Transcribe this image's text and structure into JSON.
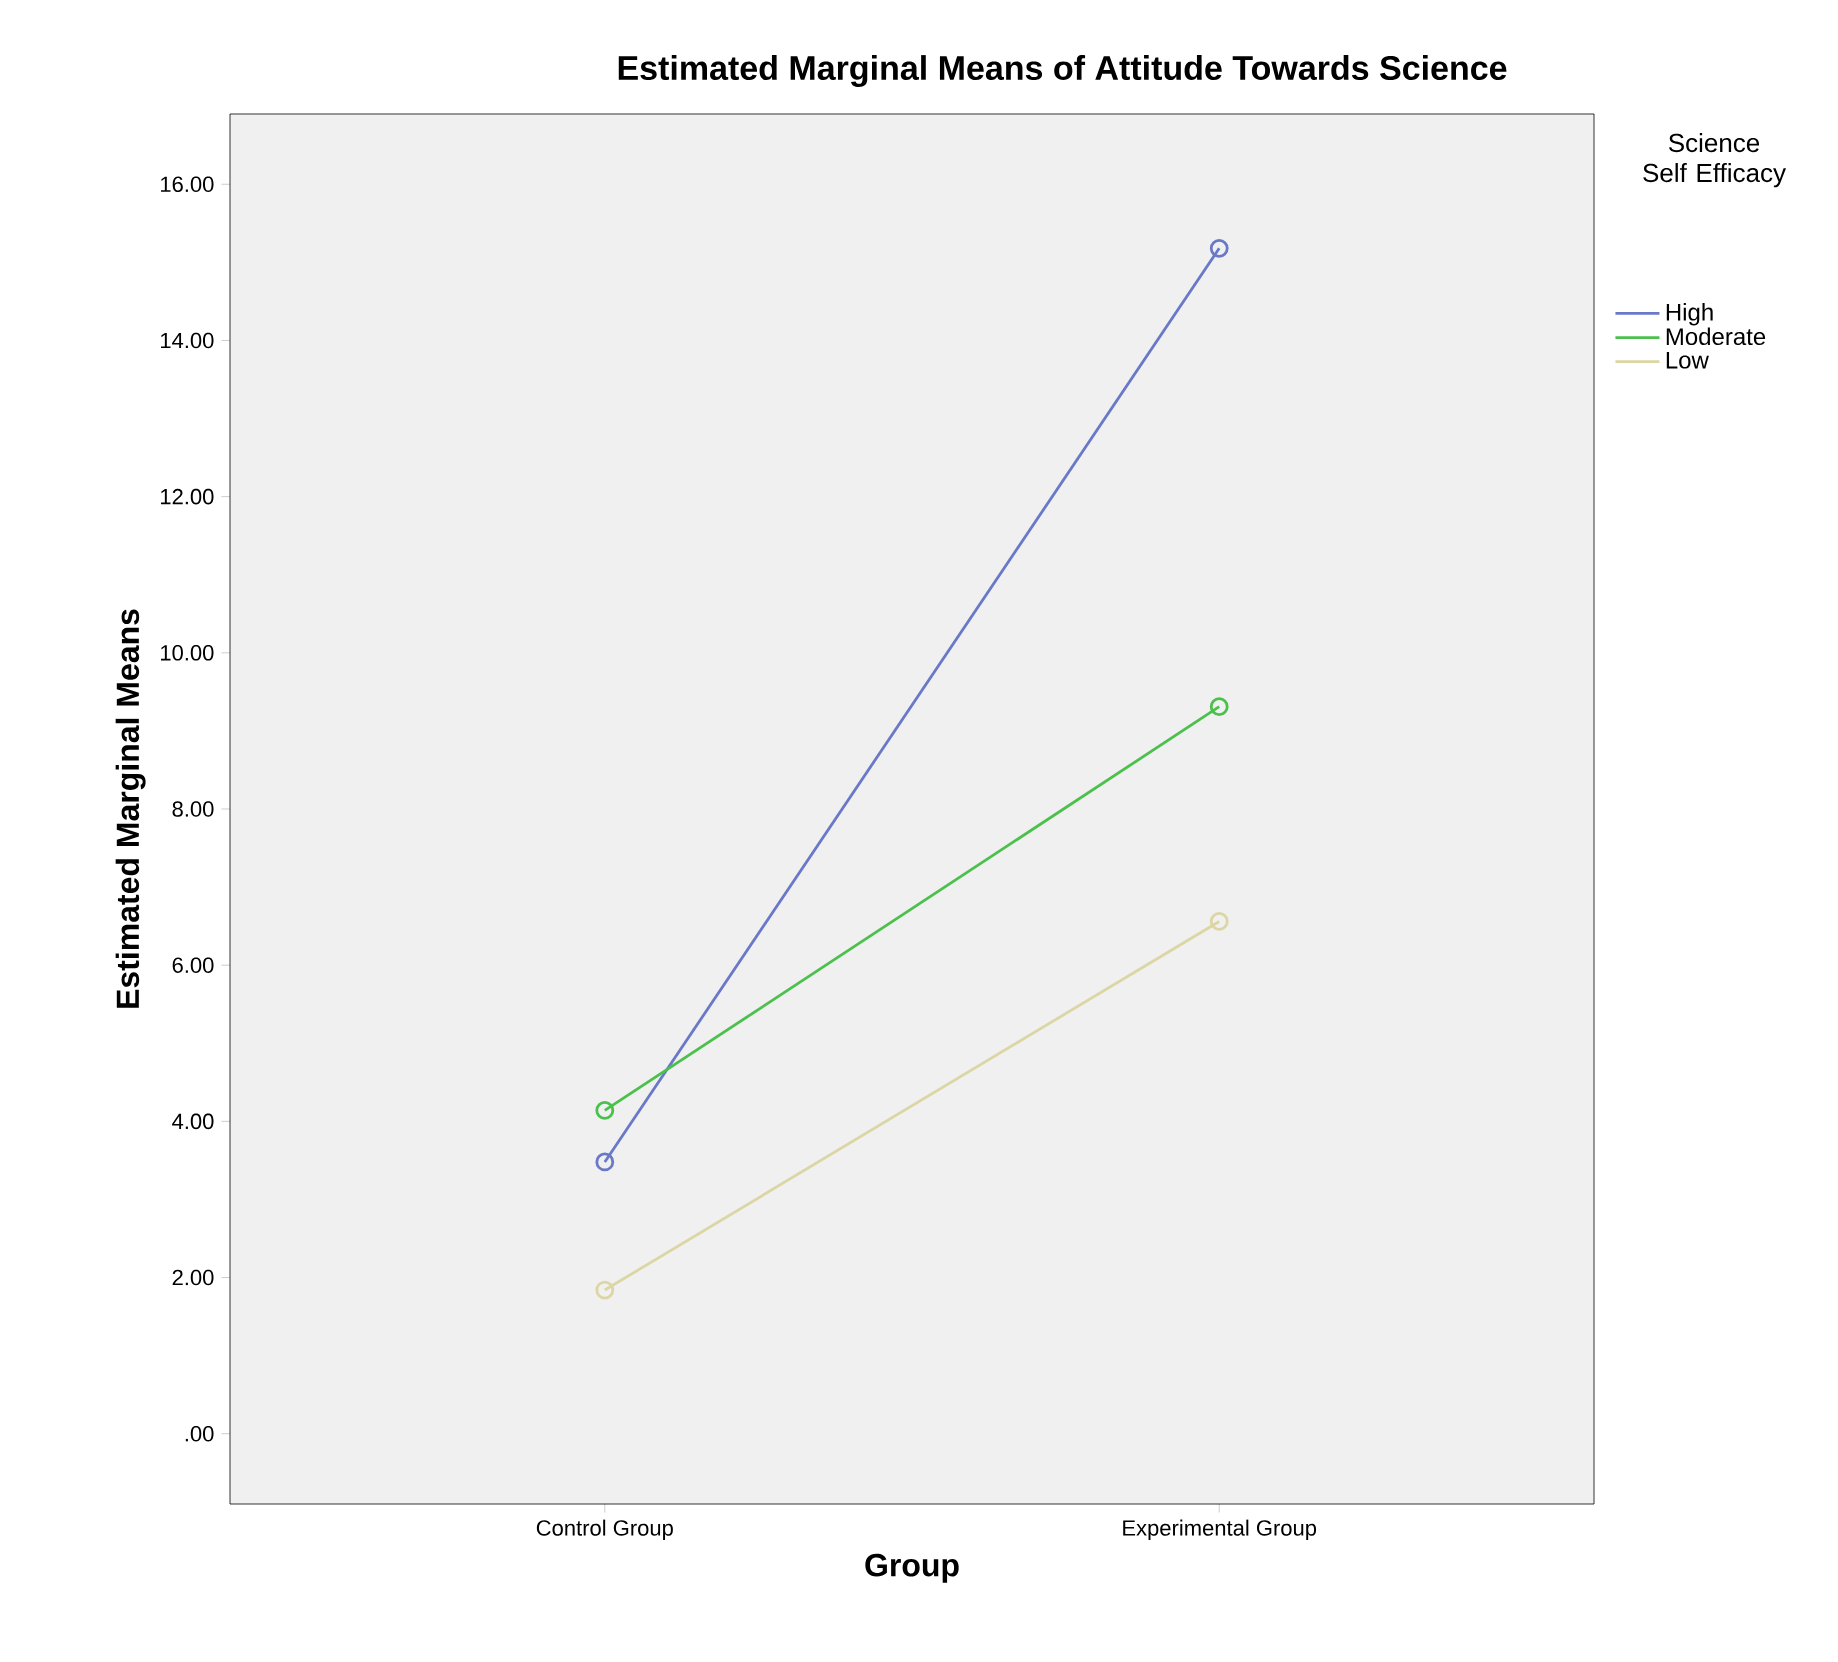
{
  "chart_data": {
    "type": "line",
    "title": "Estimated Marginal Means of Attitude Towards Science",
    "xlabel": "Group",
    "ylabel": "Estimated Marginal Means",
    "legend_title": "Science Self Efficacy",
    "categories": [
      "Control Group",
      "Experimental Group"
    ],
    "series": [
      {
        "name": "High",
        "color": "#6a78c8",
        "values": [
          3.48,
          15.18
        ]
      },
      {
        "name": "Moderate",
        "color": "#4cc04c",
        "values": [
          4.14,
          9.31
        ]
      },
      {
        "name": "Low",
        "color": "#dcd6a4",
        "values": [
          1.84,
          6.56
        ]
      }
    ],
    "ylim": [
      -0.9,
      16.9
    ],
    "yticks": [
      {
        "value": 0,
        "label": ".00"
      },
      {
        "value": 2,
        "label": "2.00"
      },
      {
        "value": 4,
        "label": "4.00"
      },
      {
        "value": 6,
        "label": "6.00"
      },
      {
        "value": 8,
        "label": "8.00"
      },
      {
        "value": 10,
        "label": "10.00"
      },
      {
        "value": 12,
        "label": "12.00"
      },
      {
        "value": 14,
        "label": "14.00"
      },
      {
        "value": 16,
        "label": "16.00"
      }
    ],
    "grid": false,
    "legend": "right",
    "marker": "circle",
    "line_style": "solid"
  }
}
